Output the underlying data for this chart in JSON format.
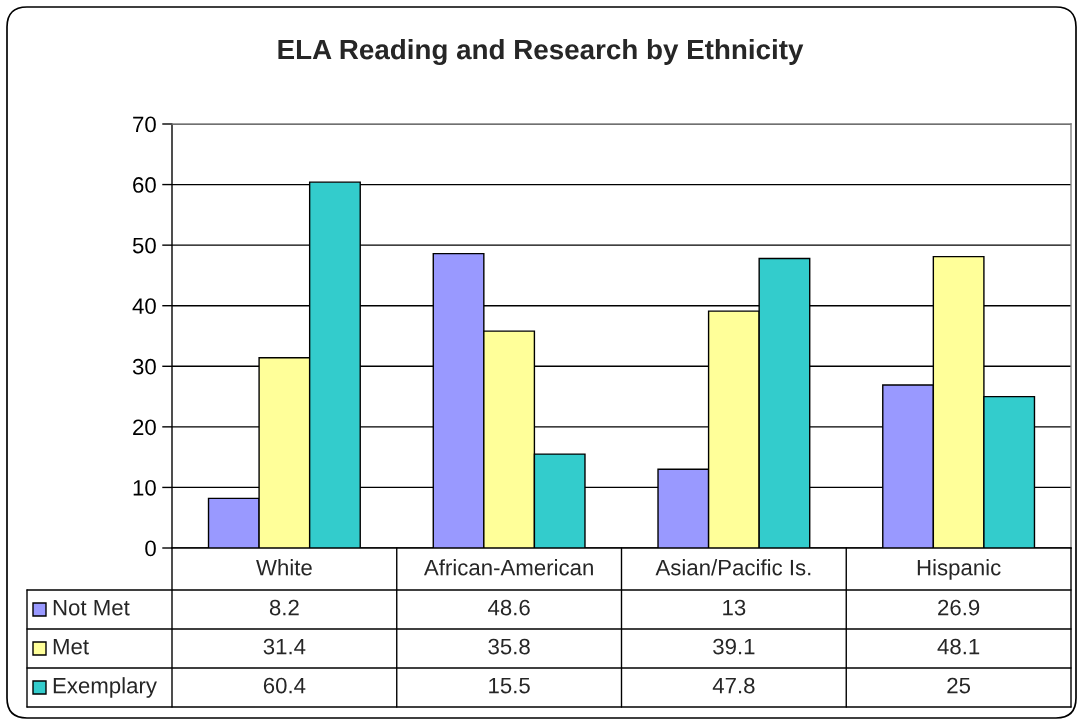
{
  "chart_data": {
    "type": "bar",
    "title": "ELA Reading and Research by Ethnicity",
    "categories": [
      "White",
      "African-American",
      "Asian/Pacific Is.",
      "Hispanic"
    ],
    "series": [
      {
        "name": "Not Met",
        "color": "#9999ff",
        "values": [
          8.2,
          48.6,
          13,
          26.9
        ]
      },
      {
        "name": "Met",
        "color": "#ffff99",
        "values": [
          31.4,
          35.8,
          39.1,
          48.1
        ]
      },
      {
        "name": "Exemplary",
        "color": "#33cccc",
        "values": [
          60.4,
          15.5,
          47.8,
          25
        ]
      }
    ],
    "ylim": [
      0,
      70
    ],
    "yticks": [
      0,
      10,
      20,
      30,
      40,
      50,
      60,
      70
    ],
    "grid": "y",
    "legend": "bottom",
    "data_labels": true
  }
}
